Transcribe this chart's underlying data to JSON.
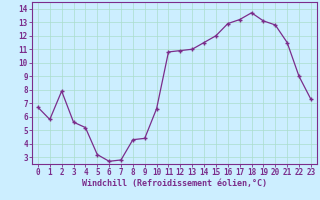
{
  "x_data": [
    0,
    1,
    2,
    3,
    4,
    5,
    6,
    7,
    8,
    9,
    10,
    11,
    12,
    13,
    14,
    15,
    16,
    17,
    18,
    19,
    20,
    21,
    22,
    23
  ],
  "y_data": [
    6.7,
    5.8,
    7.9,
    5.6,
    5.2,
    3.2,
    2.7,
    2.8,
    4.3,
    4.4,
    6.6,
    10.8,
    10.9,
    11.0,
    11.5,
    12.0,
    12.9,
    13.2,
    13.7,
    13.1,
    12.8,
    11.5,
    9.0,
    7.3
  ],
  "line_color": "#7b2d8b",
  "bg_color": "#cceeff",
  "grid_color": "#aaddcc",
  "xlabel": "Windchill (Refroidissement éolien,°C)",
  "xlim": [
    -0.5,
    23.5
  ],
  "ylim": [
    2.5,
    14.5
  ],
  "yticks": [
    3,
    4,
    5,
    6,
    7,
    8,
    9,
    10,
    11,
    12,
    13,
    14
  ],
  "xticks": [
    0,
    1,
    2,
    3,
    4,
    5,
    6,
    7,
    8,
    9,
    10,
    11,
    12,
    13,
    14,
    15,
    16,
    17,
    18,
    19,
    20,
    21,
    22,
    23
  ],
  "tick_color": "#7b2d8b",
  "font_name": "monospace",
  "tick_fontsize": 5.5,
  "xlabel_fontsize": 6.0
}
